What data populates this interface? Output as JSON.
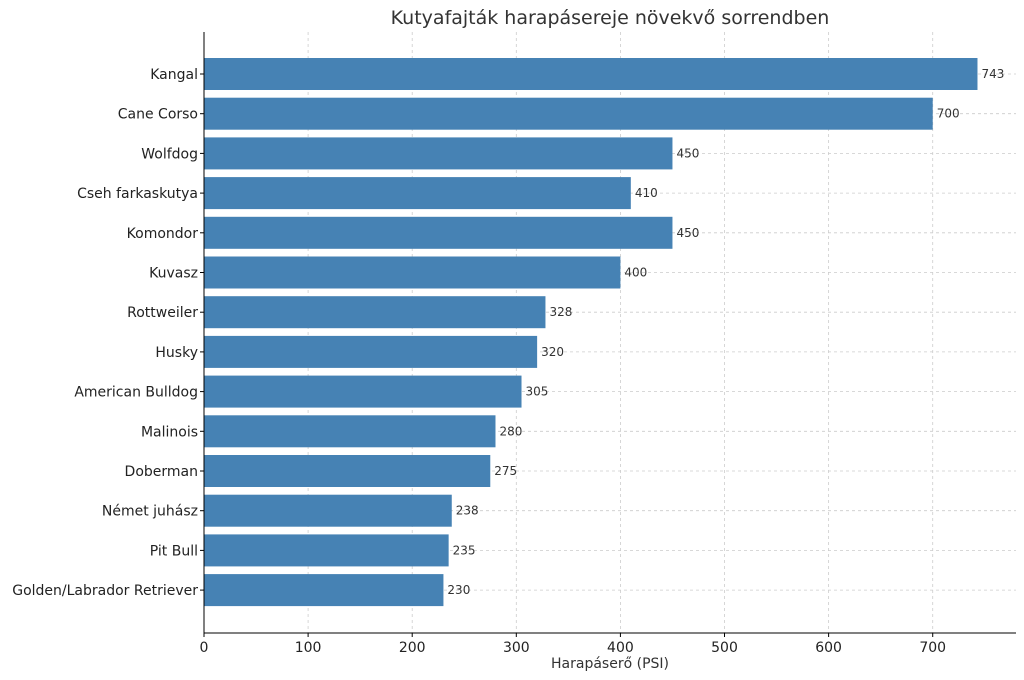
{
  "chart_data": {
    "type": "bar",
    "orientation": "horizontal",
    "title": "Kutyafajták harapásereje növekvő sorrendben",
    "xlabel": "Harapáserő (PSI)",
    "ylabel": "",
    "xlim": [
      0,
      780
    ],
    "xticks": [
      0,
      100,
      200,
      300,
      400,
      500,
      600,
      700
    ],
    "grid": true,
    "bar_color": "#4682b4",
    "categories": [
      "Kangal",
      "Cane Corso",
      "Wolfdog",
      "Cseh farkaskutya",
      "Komondor",
      "Kuvasz",
      "Rottweiler",
      "Husky",
      "American Bulldog",
      "Malinois",
      "Doberman",
      "Német juhász",
      "Pit Bull",
      "Golden/Labrador Retriever"
    ],
    "values": [
      743,
      700,
      450,
      410,
      450,
      400,
      328,
      320,
      305,
      280,
      275,
      238,
      235,
      230
    ]
  }
}
